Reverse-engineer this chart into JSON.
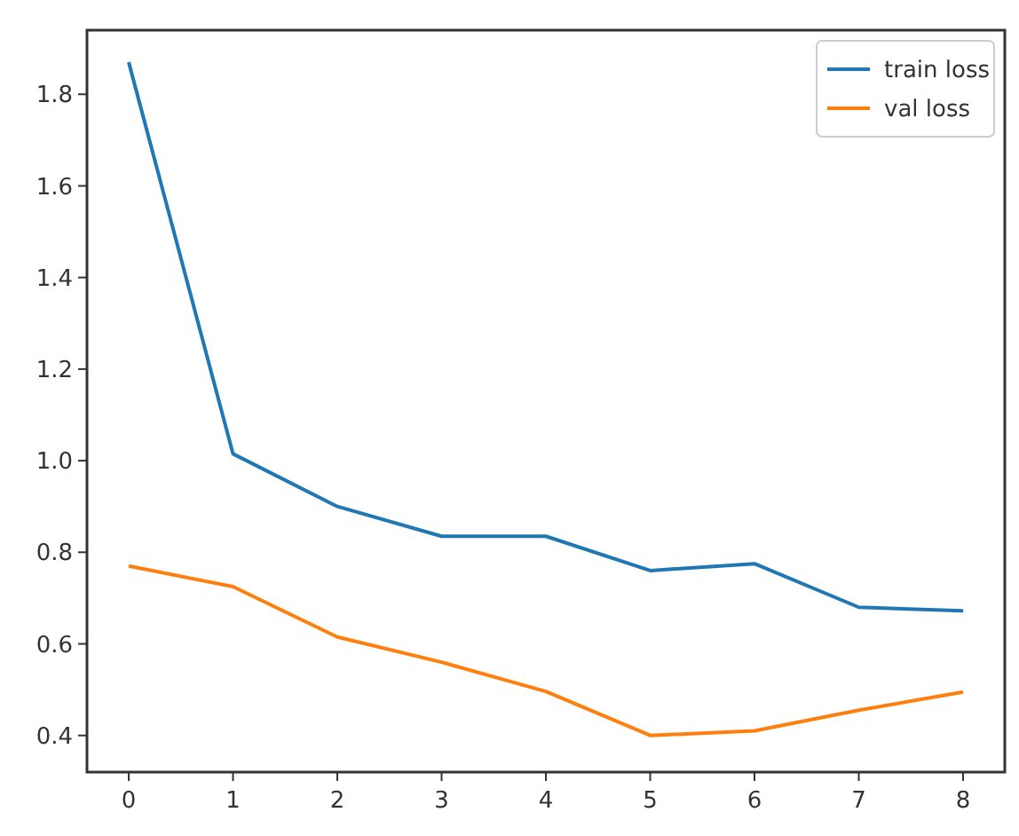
{
  "chart_data": {
    "type": "line",
    "x": [
      0,
      1,
      2,
      3,
      4,
      5,
      6,
      7,
      8
    ],
    "series": [
      {
        "name": "train loss",
        "color": "#1f77b4",
        "values": [
          1.87,
          1.015,
          0.9,
          0.835,
          0.835,
          0.76,
          0.775,
          0.68,
          0.672
        ]
      },
      {
        "name": "val loss",
        "color": "#ff7f0e",
        "values": [
          0.77,
          0.725,
          0.615,
          0.56,
          0.496,
          0.4,
          0.41,
          0.455,
          0.495
        ]
      }
    ],
    "xlim": [
      -0.4,
      8.4
    ],
    "xticks": [
      0,
      1,
      2,
      3,
      4,
      5,
      6,
      7,
      8
    ],
    "ylim": [
      0.32,
      1.94
    ],
    "yticks": [
      {
        "value": 0.4,
        "label": "0.4"
      },
      {
        "value": 0.6,
        "label": "0.6"
      },
      {
        "value": 0.8,
        "label": "0.8"
      },
      {
        "value": 1.0,
        "label": "1.0"
      },
      {
        "value": 1.2,
        "label": "1.2"
      },
      {
        "value": 1.4,
        "label": "1.4"
      },
      {
        "value": 1.6,
        "label": "1.6"
      },
      {
        "value": 1.8,
        "label": "1.8"
      }
    ],
    "legend": "top right",
    "grid": false
  }
}
